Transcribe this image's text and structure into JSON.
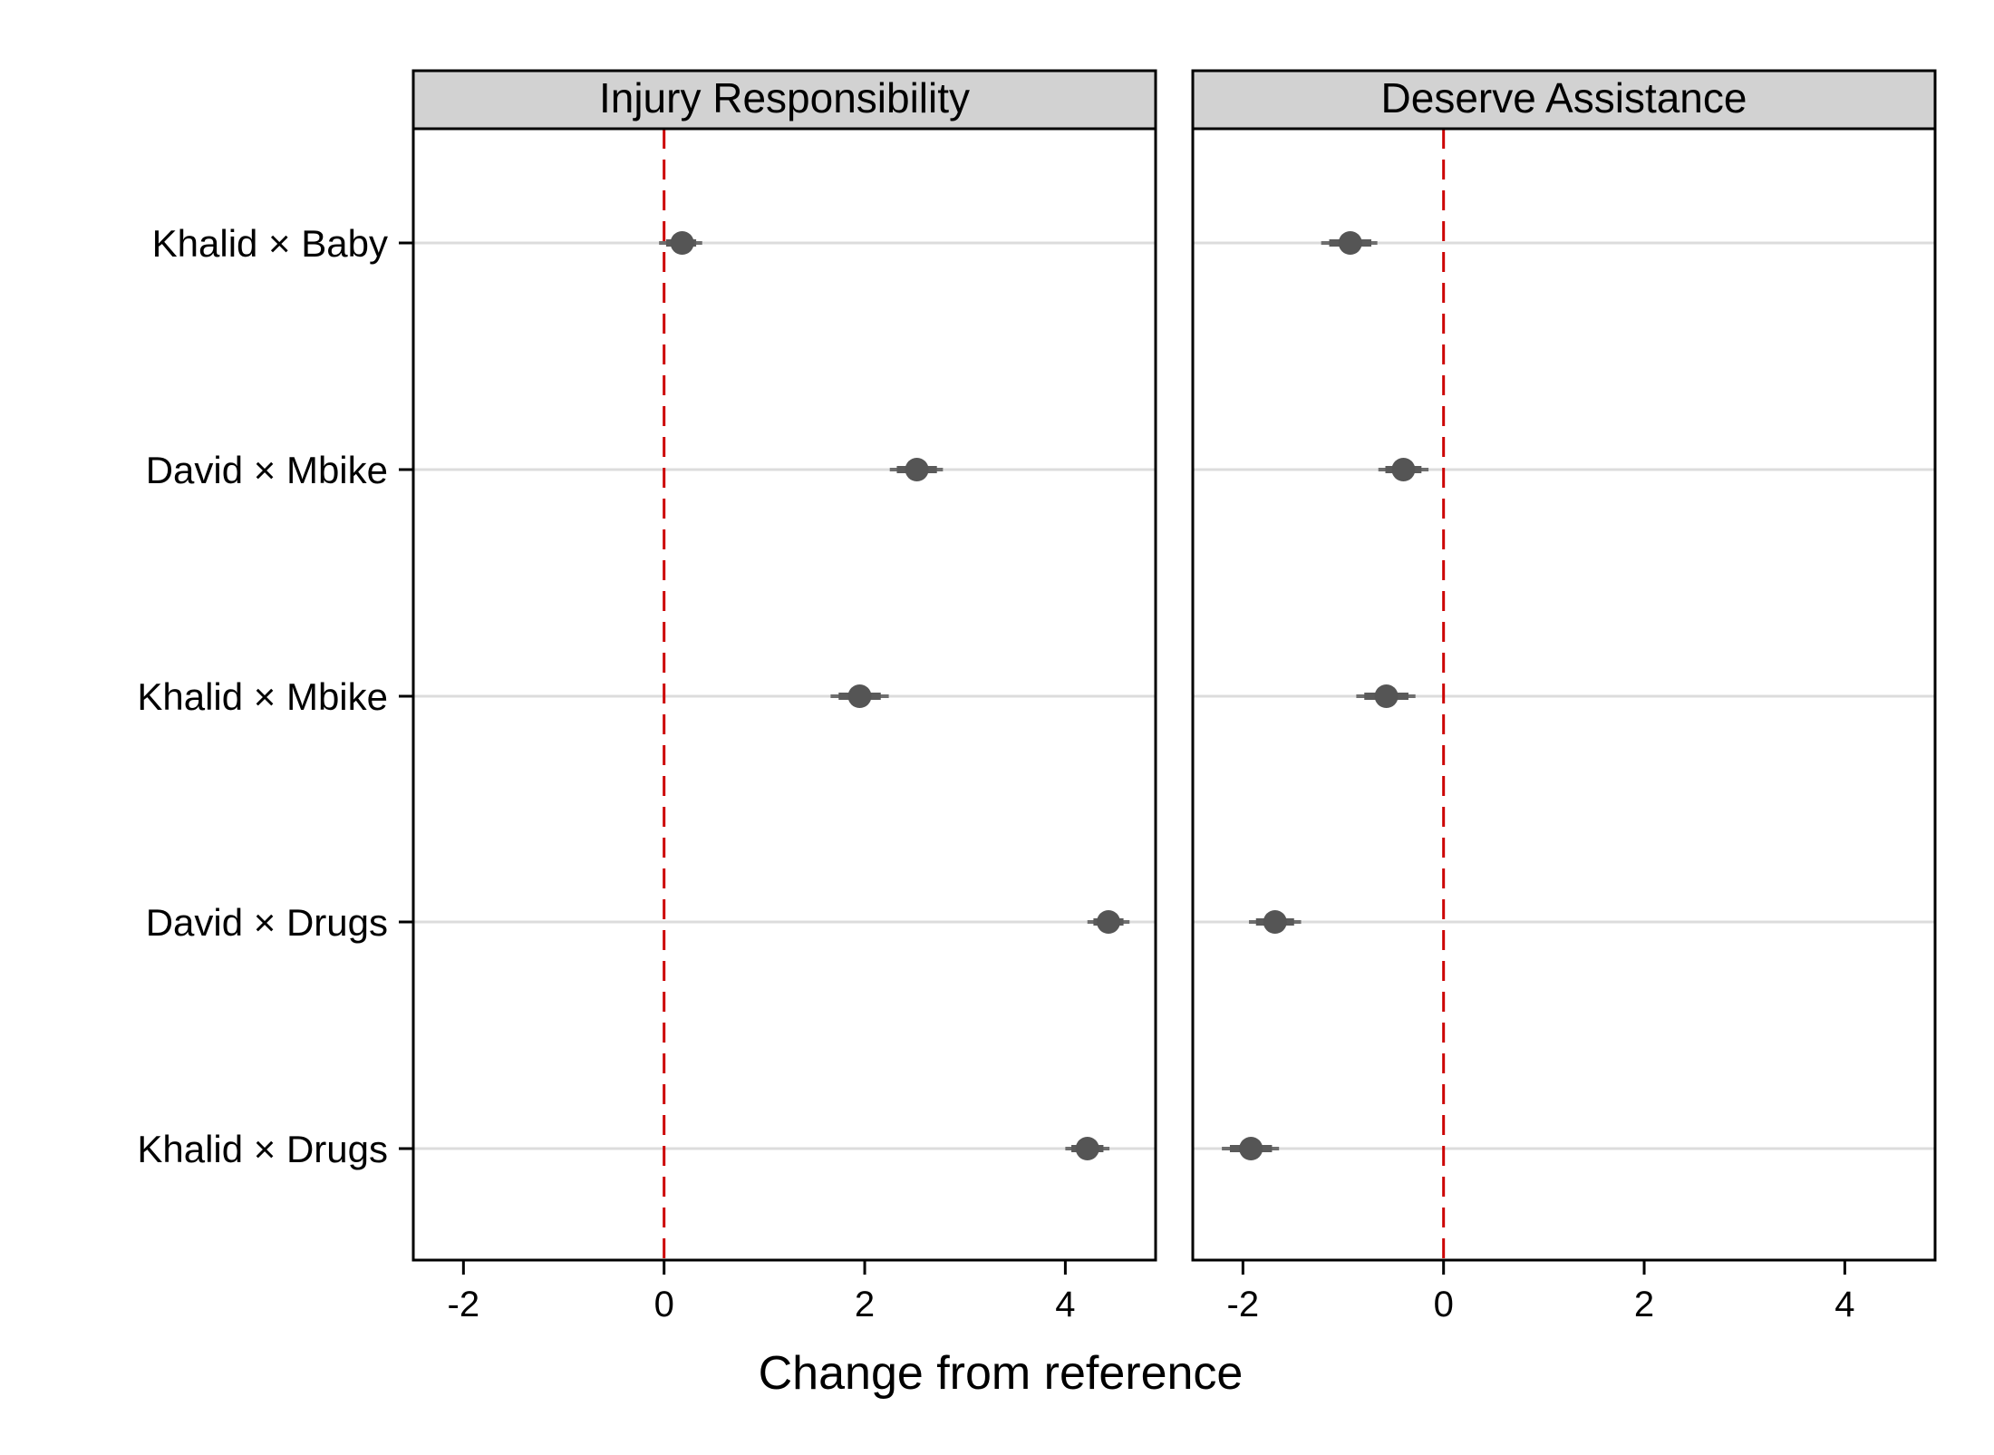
{
  "chart_data": {
    "type": "scatter",
    "xlabel": "Change from reference",
    "xlim": [
      -2.5,
      4.9
    ],
    "xticks": [
      -2,
      0,
      2,
      4
    ],
    "xtick_labels": [
      "-2",
      "0",
      "2",
      "4"
    ],
    "categories": [
      "Khalid × Baby",
      "David × Mbike",
      "Khalid × Mbike",
      "David × Drugs",
      "Khalid × Drugs"
    ],
    "reference_line": 0,
    "grid": "horizontal",
    "colors": {
      "point": "#555555",
      "reference_line": "#cc0000",
      "gridline": "#dcdcdc",
      "strip": "#d2d2d2"
    },
    "panels": [
      {
        "title": "Injury Responsibility",
        "estimates": [
          0.18,
          2.52,
          1.95,
          4.43,
          4.22
        ],
        "ci95": [
          [
            -0.05,
            0.38
          ],
          [
            2.25,
            2.78
          ],
          [
            1.66,
            2.24
          ],
          [
            4.22,
            4.64
          ],
          [
            4.0,
            4.44
          ]
        ],
        "ci90": [
          [
            0.02,
            0.32
          ],
          [
            2.32,
            2.72
          ],
          [
            1.74,
            2.16
          ],
          [
            4.28,
            4.58
          ],
          [
            4.06,
            4.38
          ]
        ]
      },
      {
        "title": "Deserve Assistance",
        "estimates": [
          -0.93,
          -0.4,
          -0.57,
          -1.68,
          -1.92
        ],
        "ci95": [
          [
            -1.22,
            -0.66
          ],
          [
            -0.65,
            -0.15
          ],
          [
            -0.87,
            -0.28
          ],
          [
            -1.94,
            -1.42
          ],
          [
            -2.21,
            -1.64
          ]
        ],
        "ci90": [
          [
            -1.14,
            -0.72
          ],
          [
            -0.58,
            -0.22
          ],
          [
            -0.79,
            -0.35
          ],
          [
            -1.87,
            -1.49
          ],
          [
            -2.13,
            -1.71
          ]
        ]
      }
    ]
  }
}
